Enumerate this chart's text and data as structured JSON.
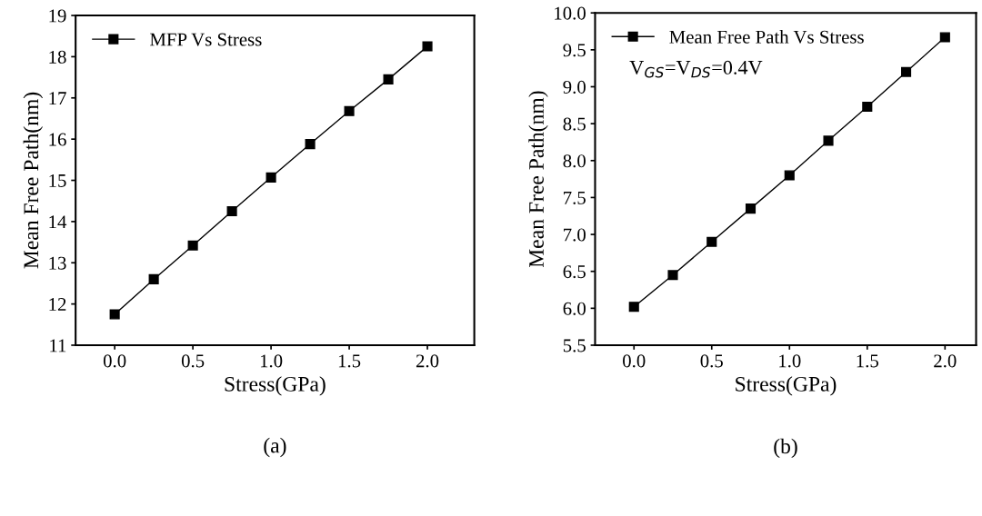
{
  "chart_data": [
    {
      "type": "line",
      "xlabel": "Stress(GPa)",
      "ylabel": "Mean Free Path(nm)",
      "x": [
        0.0,
        0.25,
        0.5,
        0.75,
        1.0,
        1.25,
        1.5,
        1.75,
        2.0
      ],
      "series": [
        {
          "name": "MFP Vs Stress",
          "color": "#000000",
          "values": [
            11.75,
            12.6,
            13.42,
            14.25,
            15.07,
            15.88,
            16.68,
            17.45,
            18.25
          ]
        }
      ],
      "xlim": [
        -0.25,
        2.3
      ],
      "xticks": [
        {
          "value": 0,
          "label": "0.0"
        },
        {
          "value": 0.5,
          "label": "0.5"
        },
        {
          "value": 1,
          "label": "1.0"
        },
        {
          "value": 1.5,
          "label": "1.5"
        },
        {
          "value": 2,
          "label": "2.0"
        }
      ],
      "ylim": [
        11,
        19
      ],
      "yticks": [
        11,
        12,
        13,
        14,
        15,
        16,
        17,
        18,
        19
      ],
      "marker": "square",
      "line_style": "solid",
      "legend": "top left",
      "grid": false,
      "annotations": [
        "(a)"
      ]
    },
    {
      "type": "line",
      "xlabel": "Stress(GPa)",
      "ylabel": "Mean Free Path(nm)",
      "x": [
        0.0,
        0.25,
        0.5,
        0.75,
        1.0,
        1.25,
        1.5,
        1.75,
        2.0
      ],
      "series": [
        {
          "name": "Mean Free Path Vs Stress",
          "color": "#000000",
          "values": [
            6.02,
            6.45,
            6.9,
            7.35,
            7.8,
            8.27,
            8.73,
            9.2,
            9.67
          ]
        }
      ],
      "xlim": [
        -0.25,
        2.2
      ],
      "xticks": [
        {
          "value": 0,
          "label": "0.0"
        },
        {
          "value": 0.5,
          "label": "0.5"
        },
        {
          "value": 1,
          "label": "1.0"
        },
        {
          "value": 1.5,
          "label": "1.5"
        },
        {
          "value": 2,
          "label": "2.0"
        }
      ],
      "ylim": [
        5.5,
        10.0
      ],
      "yticks": [
        5.5,
        {
          "value": 6,
          "label": "6.0"
        },
        6.5,
        {
          "value": 7,
          "label": "7.0"
        },
        7.5,
        {
          "value": 8,
          "label": "8.0"
        },
        8.5,
        {
          "value": 9,
          "label": "9.0"
        },
        9.5,
        {
          "value": 10,
          "label": "10.0"
        }
      ],
      "marker": "square",
      "line_style": "solid",
      "legend": "top left",
      "grid": false,
      "annotations": [
        "V$_{GS}$=V$_{DS}$=0.4V",
        "(b)"
      ]
    }
  ]
}
